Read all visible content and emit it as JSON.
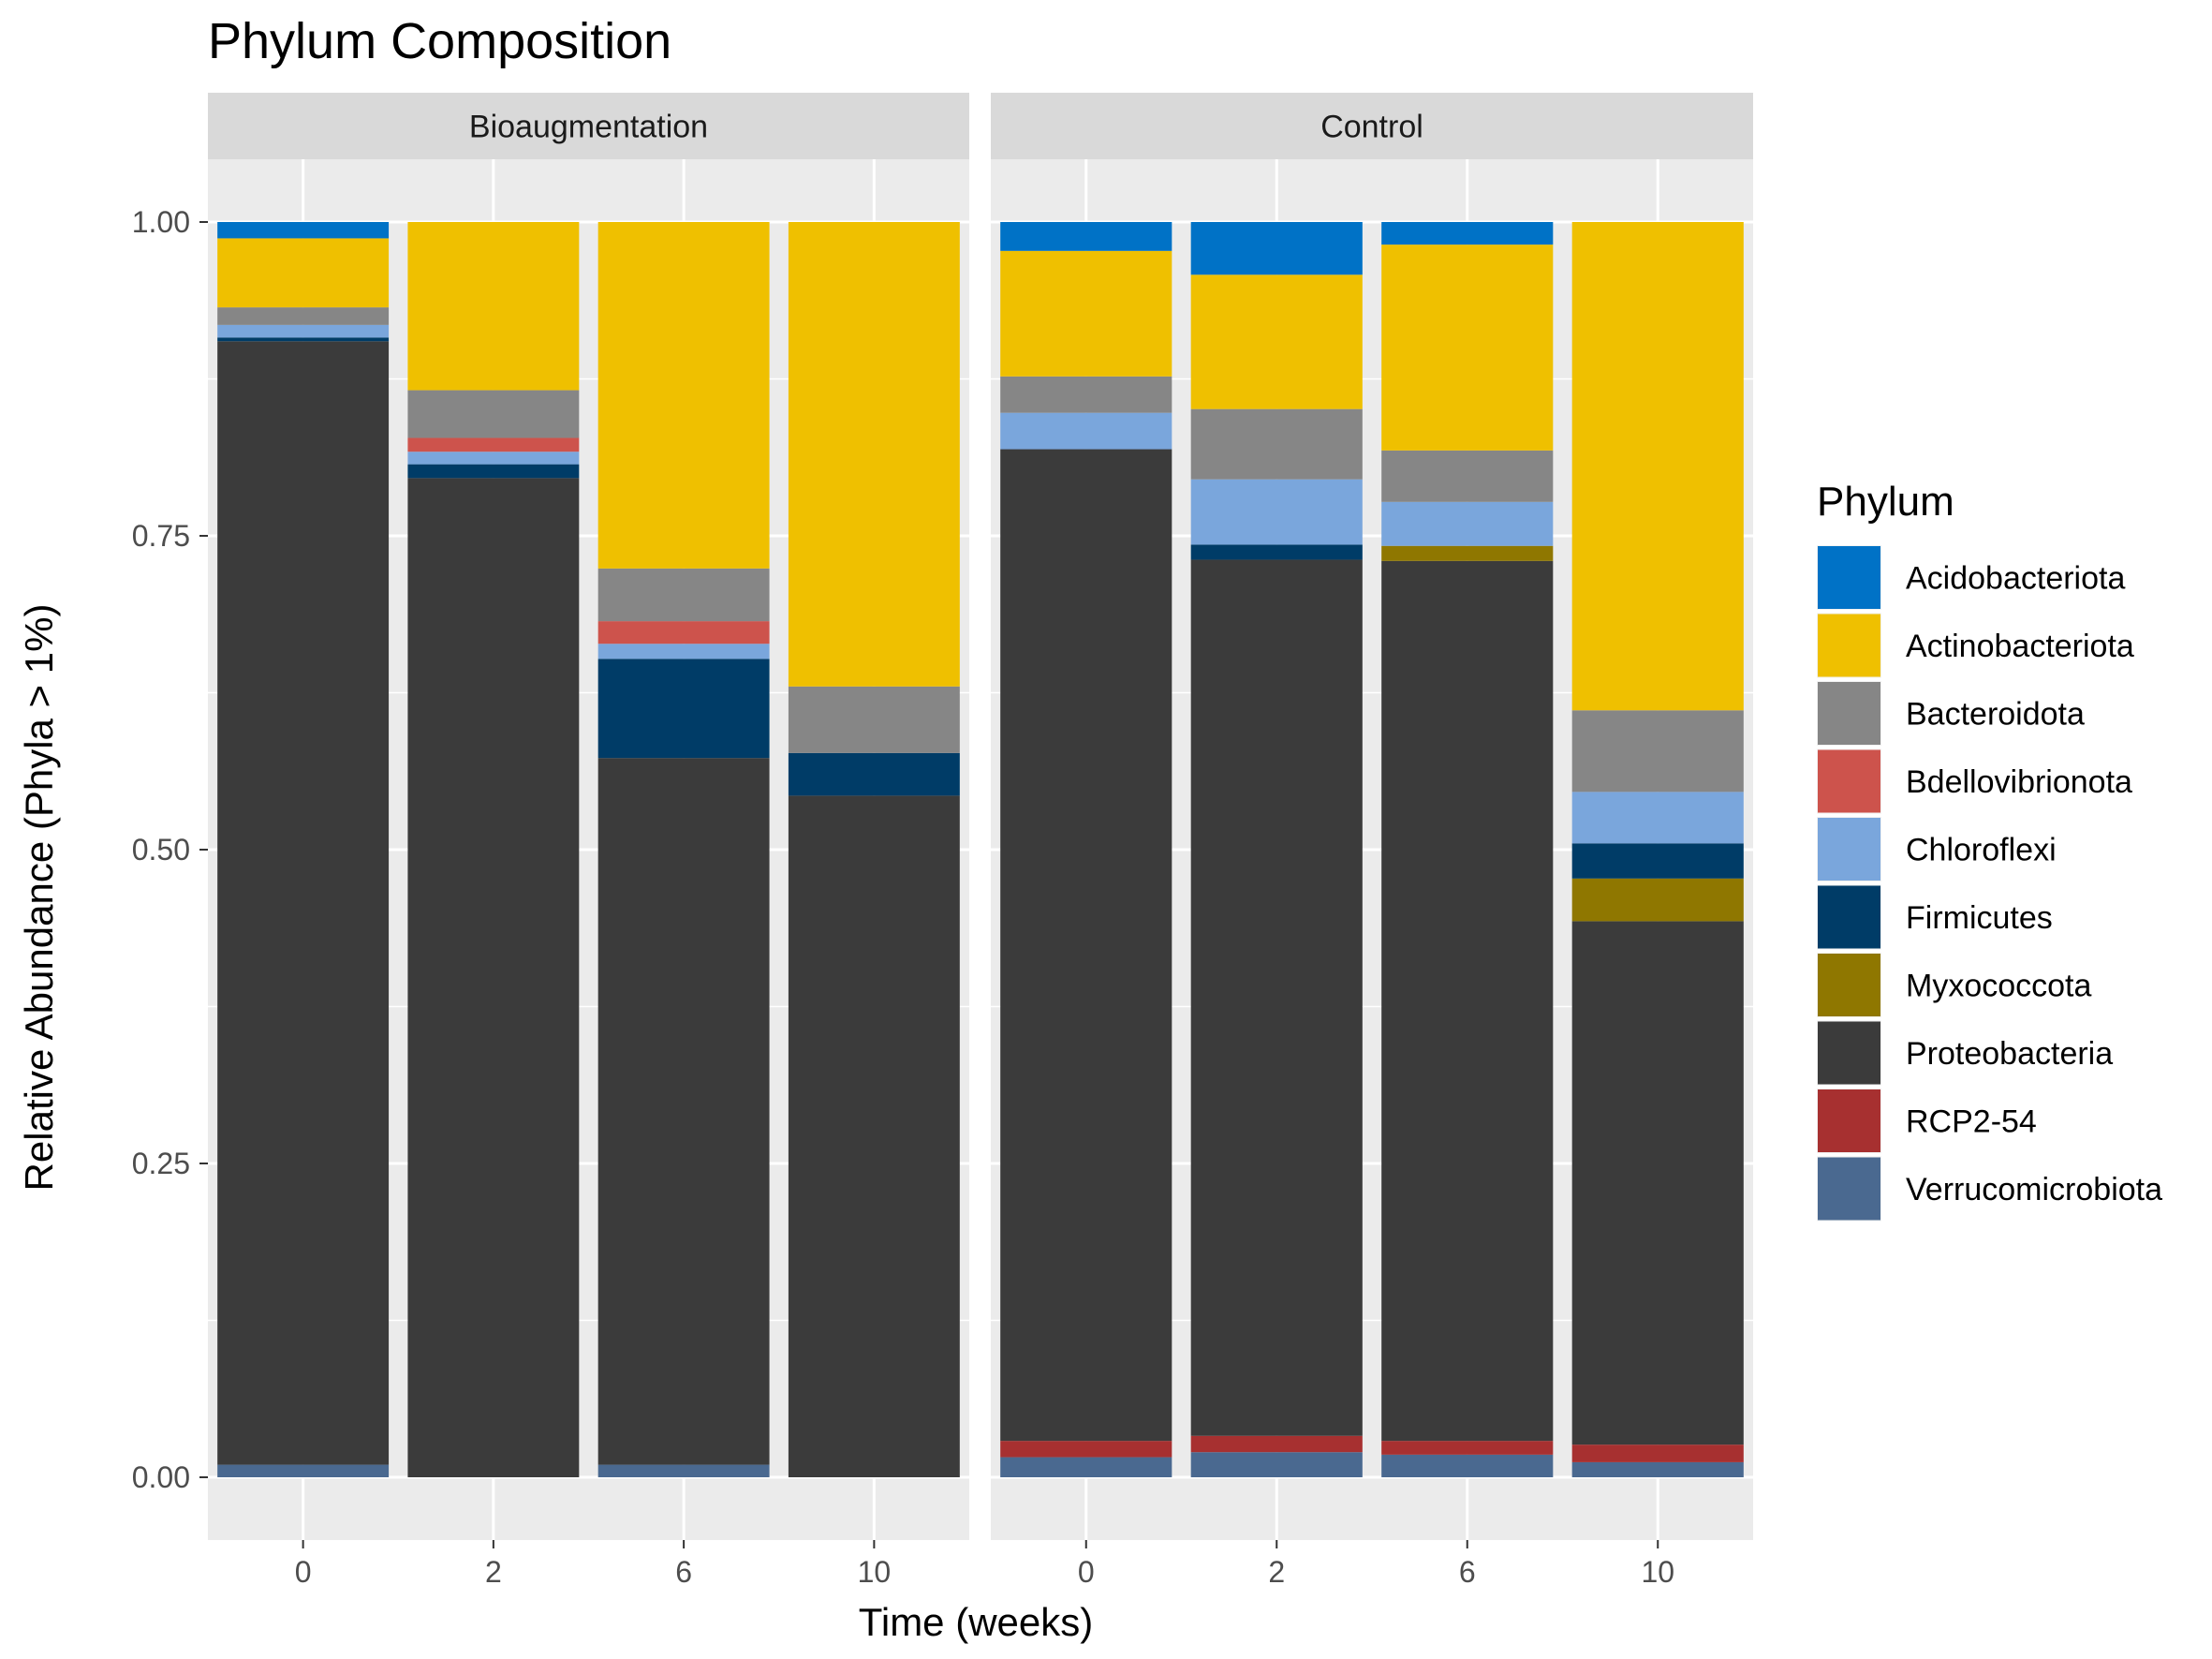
{
  "chart_data": {
    "type": "bar",
    "stacked": true,
    "title": "Phylum Composition",
    "xlabel": "Time (weeks)",
    "ylabel": "Relative Abundance (Phyla > 1%)",
    "ylim": [
      -0.05,
      1.05
    ],
    "y_ticks": [
      "0.00",
      "0.25",
      "0.50",
      "0.75",
      "1.00"
    ],
    "y_tick_values": [
      0,
      0.25,
      0.5,
      0.75,
      1.0
    ],
    "categories": [
      "0",
      "2",
      "6",
      "10"
    ],
    "grid": true,
    "legend_position": "right",
    "legend_title": "Phylum",
    "phyla": [
      {
        "name": "Acidobacteriota",
        "color": "#0072C6"
      },
      {
        "name": "Actinobacteriota",
        "color": "#EFC000"
      },
      {
        "name": "Bacteroidota",
        "color": "#868686"
      },
      {
        "name": "Bdellovibrionota",
        "color": "#CD534C"
      },
      {
        "name": "Chloroflexi",
        "color": "#7AA6DC"
      },
      {
        "name": "Firmicutes",
        "color": "#003C67"
      },
      {
        "name": "Myxococcota",
        "color": "#8F7700"
      },
      {
        "name": "Proteobacteria",
        "color": "#3B3B3B"
      },
      {
        "name": "RCP2-54",
        "color": "#A73030"
      },
      {
        "name": "Verrucomicrobiota",
        "color": "#4A6990"
      }
    ],
    "panels": [
      {
        "name": "Bioaugmentation",
        "bars": [
          {
            "x": "0",
            "values": {
              "Acidobacteriota": 0.013,
              "Actinobacteriota": 0.055,
              "Bacteroidota": 0.014,
              "Bdellovibrionota": 0,
              "Chloroflexi": 0.01,
              "Firmicutes": 0.003,
              "Myxococcota": 0,
              "Proteobacteria": 0.895,
              "RCP2-54": 0,
              "Verrucomicrobiota": 0.01
            }
          },
          {
            "x": "2",
            "values": {
              "Acidobacteriota": 0,
              "Actinobacteriota": 0.134,
              "Bacteroidota": 0.038,
              "Bdellovibrionota": 0.011,
              "Chloroflexi": 0.01,
              "Firmicutes": 0.011,
              "Myxococcota": 0,
              "Proteobacteria": 0.796,
              "RCP2-54": 0,
              "Verrucomicrobiota": 0
            }
          },
          {
            "x": "6",
            "values": {
              "Acidobacteriota": 0,
              "Actinobacteriota": 0.276,
              "Bacteroidota": 0.042,
              "Bdellovibrionota": 0.018,
              "Chloroflexi": 0.012,
              "Firmicutes": 0.079,
              "Myxococcota": 0,
              "Proteobacteria": 0.563,
              "RCP2-54": 0,
              "Verrucomicrobiota": 0.01
            }
          },
          {
            "x": "10",
            "values": {
              "Acidobacteriota": 0,
              "Actinobacteriota": 0.37,
              "Bacteroidota": 0.053,
              "Bdellovibrionota": 0,
              "Chloroflexi": 0,
              "Firmicutes": 0.034,
              "Myxococcota": 0,
              "Proteobacteria": 0.543,
              "RCP2-54": 0,
              "Verrucomicrobiota": 0
            }
          }
        ]
      },
      {
        "name": "Control",
        "bars": [
          {
            "x": "0",
            "values": {
              "Acidobacteriota": 0.023,
              "Actinobacteriota": 0.1,
              "Bacteroidota": 0.029,
              "Bdellovibrionota": 0,
              "Chloroflexi": 0.029,
              "Firmicutes": 0,
              "Myxococcota": 0,
              "Proteobacteria": 0.79,
              "RCP2-54": 0.013,
              "Verrucomicrobiota": 0.016
            }
          },
          {
            "x": "2",
            "values": {
              "Acidobacteriota": 0.042,
              "Actinobacteriota": 0.107,
              "Bacteroidota": 0.056,
              "Bdellovibrionota": 0,
              "Chloroflexi": 0.052,
              "Firmicutes": 0.012,
              "Myxococcota": 0,
              "Proteobacteria": 0.698,
              "RCP2-54": 0.013,
              "Verrucomicrobiota": 0.02
            }
          },
          {
            "x": "6",
            "values": {
              "Acidobacteriota": 0.018,
              "Actinobacteriota": 0.164,
              "Bacteroidota": 0.041,
              "Bdellovibrionota": 0,
              "Chloroflexi": 0.035,
              "Firmicutes": 0,
              "Myxococcota": 0.012,
              "Proteobacteria": 0.701,
              "RCP2-54": 0.011,
              "Verrucomicrobiota": 0.018
            }
          },
          {
            "x": "10",
            "values": {
              "Acidobacteriota": 0,
              "Actinobacteriota": 0.389,
              "Bacteroidota": 0.065,
              "Bdellovibrionota": 0,
              "Chloroflexi": 0.041,
              "Firmicutes": 0.028,
              "Myxococcota": 0.034,
              "Proteobacteria": 0.417,
              "RCP2-54": 0.014,
              "Verrucomicrobiota": 0.012
            }
          }
        ]
      }
    ]
  }
}
